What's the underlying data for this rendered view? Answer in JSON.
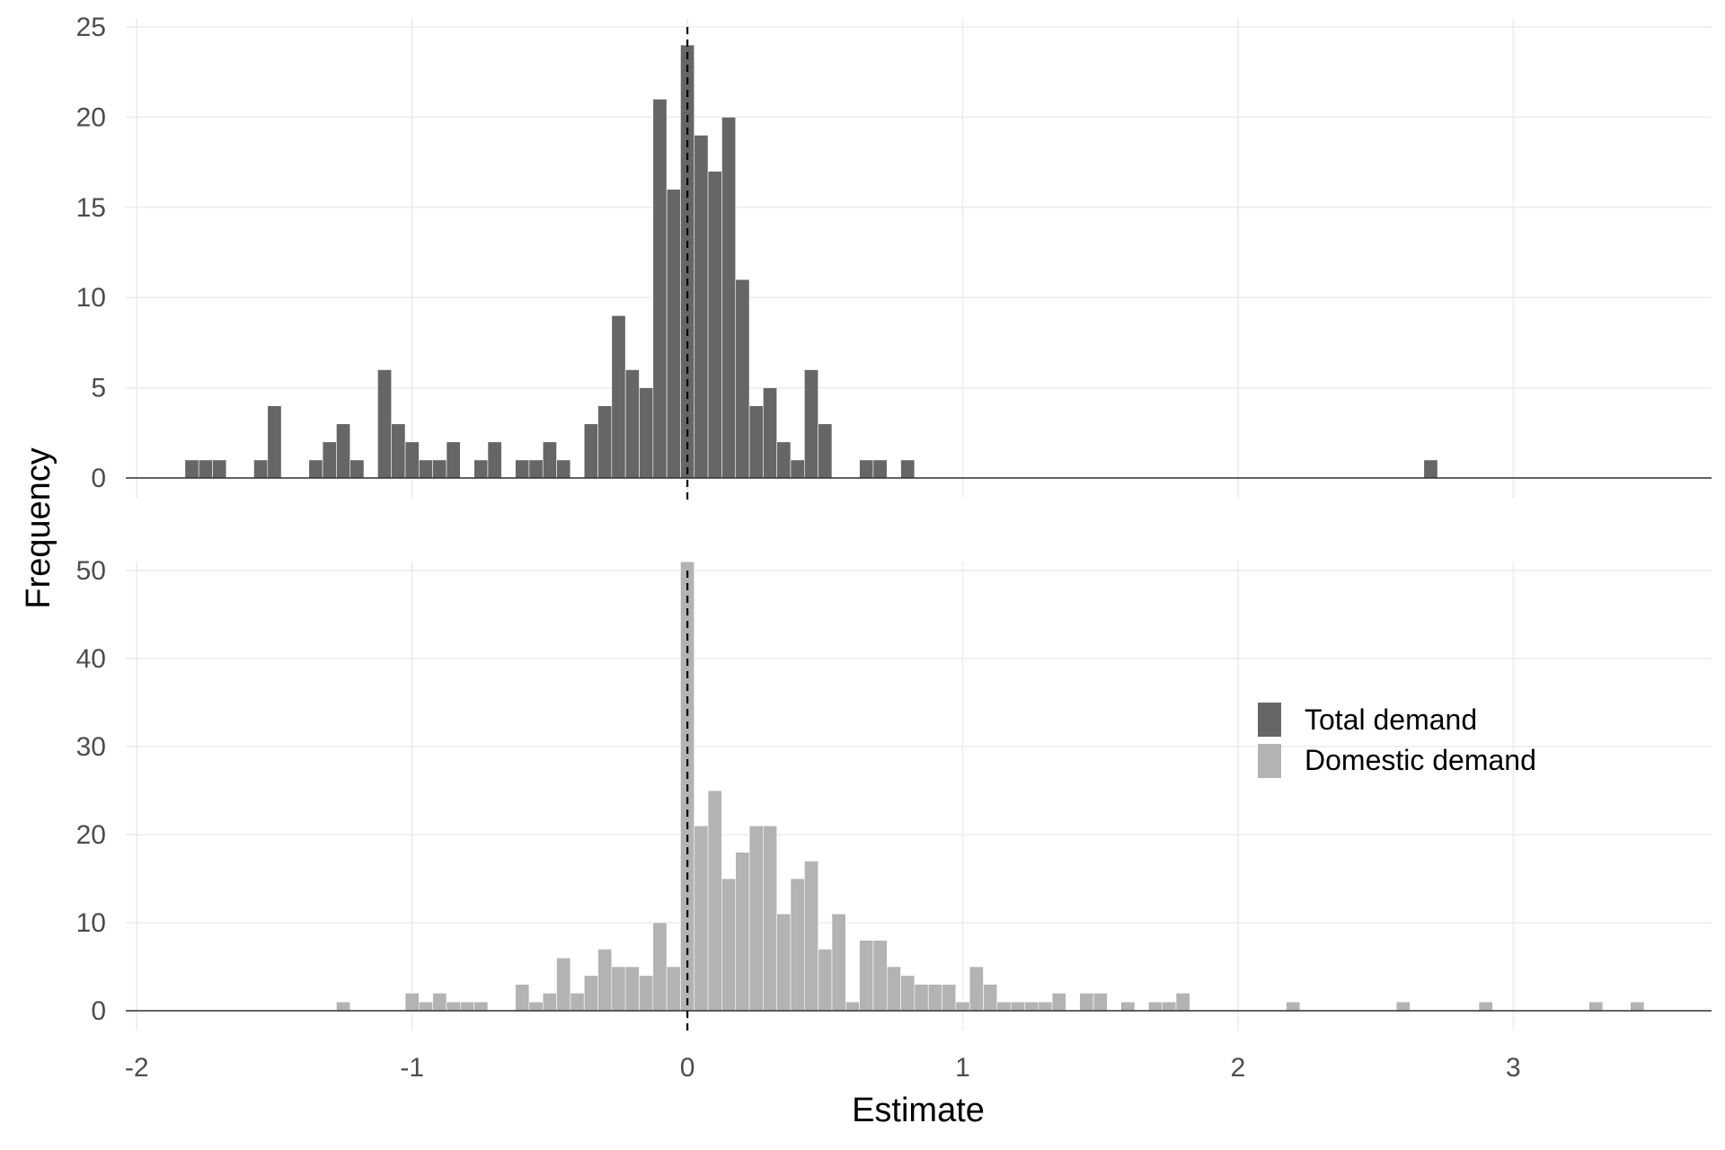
{
  "chart_data": {
    "type": "bar",
    "xlabel": "Estimate",
    "ylabel": "Frequency",
    "xlim": [
      -2.04,
      3.72
    ],
    "x_ticks": [
      "-2",
      "-1",
      "0",
      "1",
      "2",
      "3"
    ],
    "x_tick_values": [
      -2,
      -1,
      0,
      1,
      2,
      3
    ],
    "bin_width": 0.05,
    "reference_line_x": 0,
    "grid": true,
    "legend_position": "right, inside lower panel",
    "legend": [
      {
        "label": "Total demand",
        "color": "#666666"
      },
      {
        "label": "Domestic demand",
        "color": "#b3b3b3"
      }
    ],
    "panels": [
      {
        "series_name": "Total demand",
        "color": "#666666",
        "ylim": [
          0,
          25
        ],
        "y_ticks": [
          "0",
          "5",
          "10",
          "15",
          "20",
          "25"
        ],
        "y_tick_values": [
          0,
          5,
          10,
          15,
          20,
          25
        ],
        "bins": [
          {
            "x": -1.8,
            "count": 1
          },
          {
            "x": -1.75,
            "count": 1
          },
          {
            "x": -1.7,
            "count": 1
          },
          {
            "x": -1.55,
            "count": 1
          },
          {
            "x": -1.5,
            "count": 4
          },
          {
            "x": -1.35,
            "count": 1
          },
          {
            "x": -1.3,
            "count": 2
          },
          {
            "x": -1.25,
            "count": 3
          },
          {
            "x": -1.2,
            "count": 1
          },
          {
            "x": -1.1,
            "count": 6
          },
          {
            "x": -1.05,
            "count": 3
          },
          {
            "x": -1.0,
            "count": 2
          },
          {
            "x": -0.95,
            "count": 1
          },
          {
            "x": -0.9,
            "count": 1
          },
          {
            "x": -0.85,
            "count": 2
          },
          {
            "x": -0.75,
            "count": 1
          },
          {
            "x": -0.7,
            "count": 2
          },
          {
            "x": -0.6,
            "count": 1
          },
          {
            "x": -0.55,
            "count": 1
          },
          {
            "x": -0.5,
            "count": 2
          },
          {
            "x": -0.45,
            "count": 1
          },
          {
            "x": -0.35,
            "count": 3
          },
          {
            "x": -0.3,
            "count": 4
          },
          {
            "x": -0.25,
            "count": 9
          },
          {
            "x": -0.2,
            "count": 6
          },
          {
            "x": -0.15,
            "count": 5
          },
          {
            "x": -0.1,
            "count": 21
          },
          {
            "x": -0.05,
            "count": 16
          },
          {
            "x": 0.0,
            "count": 24
          },
          {
            "x": 0.05,
            "count": 19
          },
          {
            "x": 0.1,
            "count": 17
          },
          {
            "x": 0.15,
            "count": 20
          },
          {
            "x": 0.2,
            "count": 11
          },
          {
            "x": 0.25,
            "count": 4
          },
          {
            "x": 0.3,
            "count": 5
          },
          {
            "x": 0.35,
            "count": 2
          },
          {
            "x": 0.4,
            "count": 1
          },
          {
            "x": 0.45,
            "count": 6
          },
          {
            "x": 0.5,
            "count": 3
          },
          {
            "x": 0.65,
            "count": 1
          },
          {
            "x": 0.7,
            "count": 1
          },
          {
            "x": 0.8,
            "count": 1
          },
          {
            "x": 2.7,
            "count": 1
          }
        ]
      },
      {
        "series_name": "Domestic demand",
        "color": "#b3b3b3",
        "ylim": [
          0,
          50
        ],
        "y_ticks": [
          "0",
          "10",
          "20",
          "30",
          "40",
          "50"
        ],
        "y_tick_values": [
          0,
          10,
          20,
          30,
          40,
          50
        ],
        "bins": [
          {
            "x": -1.25,
            "count": 1
          },
          {
            "x": -1.0,
            "count": 2
          },
          {
            "x": -0.95,
            "count": 1
          },
          {
            "x": -0.9,
            "count": 2
          },
          {
            "x": -0.85,
            "count": 1
          },
          {
            "x": -0.8,
            "count": 1
          },
          {
            "x": -0.75,
            "count": 1
          },
          {
            "x": -0.6,
            "count": 3
          },
          {
            "x": -0.55,
            "count": 1
          },
          {
            "x": -0.5,
            "count": 2
          },
          {
            "x": -0.45,
            "count": 6
          },
          {
            "x": -0.4,
            "count": 2
          },
          {
            "x": -0.35,
            "count": 4
          },
          {
            "x": -0.3,
            "count": 7
          },
          {
            "x": -0.25,
            "count": 5
          },
          {
            "x": -0.2,
            "count": 5
          },
          {
            "x": -0.15,
            "count": 4
          },
          {
            "x": -0.1,
            "count": 10
          },
          {
            "x": -0.05,
            "count": 5
          },
          {
            "x": 0.0,
            "count": 51
          },
          {
            "x": 0.05,
            "count": 21
          },
          {
            "x": 0.1,
            "count": 25
          },
          {
            "x": 0.15,
            "count": 15
          },
          {
            "x": 0.2,
            "count": 18
          },
          {
            "x": 0.25,
            "count": 21
          },
          {
            "x": 0.3,
            "count": 21
          },
          {
            "x": 0.35,
            "count": 11
          },
          {
            "x": 0.4,
            "count": 15
          },
          {
            "x": 0.45,
            "count": 17
          },
          {
            "x": 0.5,
            "count": 7
          },
          {
            "x": 0.55,
            "count": 11
          },
          {
            "x": 0.6,
            "count": 1
          },
          {
            "x": 0.65,
            "count": 8
          },
          {
            "x": 0.7,
            "count": 8
          },
          {
            "x": 0.75,
            "count": 5
          },
          {
            "x": 0.8,
            "count": 4
          },
          {
            "x": 0.85,
            "count": 3
          },
          {
            "x": 0.9,
            "count": 3
          },
          {
            "x": 0.95,
            "count": 3
          },
          {
            "x": 1.0,
            "count": 1
          },
          {
            "x": 1.05,
            "count": 5
          },
          {
            "x": 1.1,
            "count": 3
          },
          {
            "x": 1.15,
            "count": 1
          },
          {
            "x": 1.2,
            "count": 1
          },
          {
            "x": 1.25,
            "count": 1
          },
          {
            "x": 1.3,
            "count": 1
          },
          {
            "x": 1.35,
            "count": 2
          },
          {
            "x": 1.45,
            "count": 2
          },
          {
            "x": 1.5,
            "count": 2
          },
          {
            "x": 1.6,
            "count": 1
          },
          {
            "x": 1.7,
            "count": 1
          },
          {
            "x": 1.75,
            "count": 1
          },
          {
            "x": 1.8,
            "count": 2
          },
          {
            "x": 2.2,
            "count": 1
          },
          {
            "x": 2.6,
            "count": 1
          },
          {
            "x": 2.9,
            "count": 1
          },
          {
            "x": 3.3,
            "count": 1
          },
          {
            "x": 3.45,
            "count": 1
          }
        ]
      }
    ]
  }
}
